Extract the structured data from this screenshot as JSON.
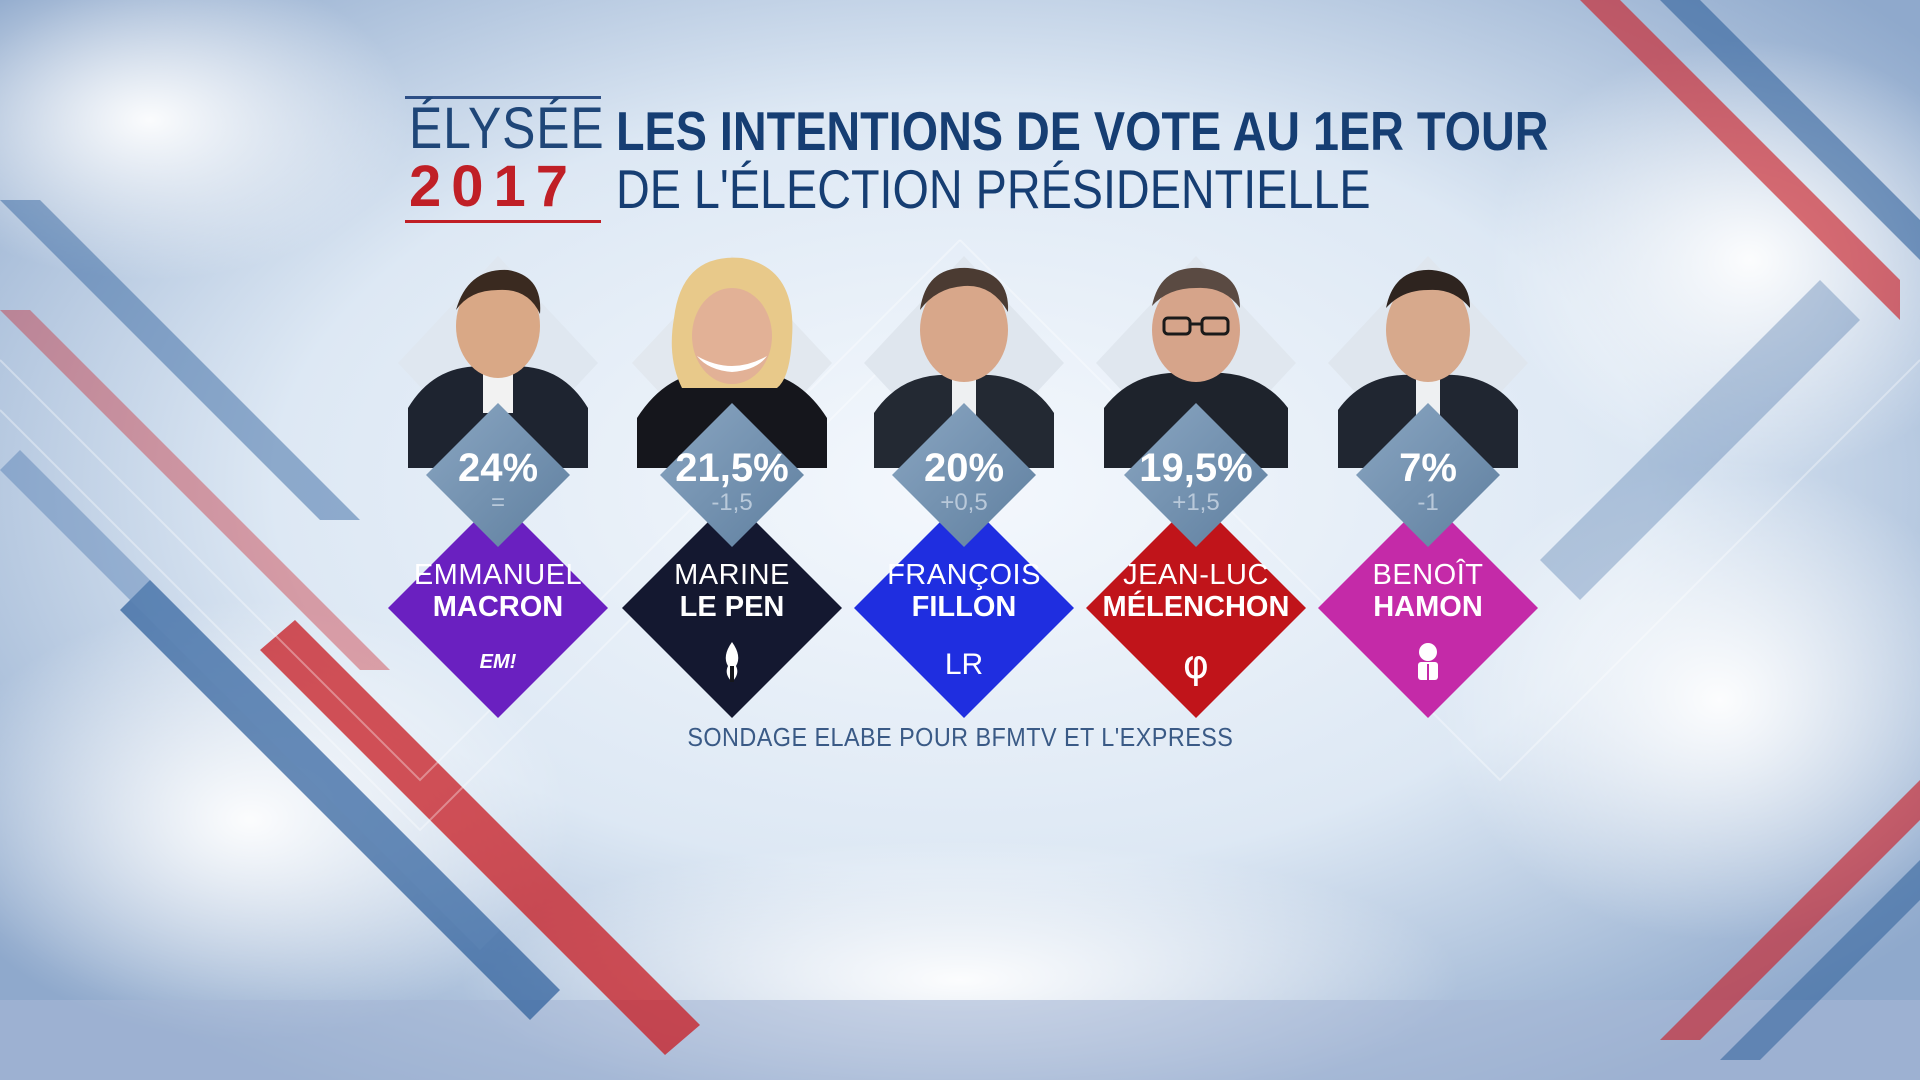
{
  "brand": {
    "line1": "ÉLYSÉE",
    "line2": "2017"
  },
  "title": {
    "line1": "LES INTENTIONS DE VOTE AU 1ER TOUR",
    "line2": "DE L'ÉLECTION PRÉSIDENTIELLE"
  },
  "colors": {
    "brand_red": "#c01f26",
    "brand_blue": "#1f4678",
    "percent_diamond": "#6f8fae"
  },
  "candidates": [
    {
      "pct": "24%",
      "delta": "=",
      "first": "EMMANUEL",
      "last": "MACRON",
      "party_mark": "EM!",
      "color": "#6a20c0",
      "party_icon": "en-marche-logo"
    },
    {
      "pct": "21,5%",
      "delta": "-1,5",
      "first": "MARINE",
      "last": "LE PEN",
      "party_mark": "",
      "color": "#141830",
      "party_icon": "flame-icon"
    },
    {
      "pct": "20%",
      "delta": "+0,5",
      "first": "FRANÇOIS",
      "last": "FILLON",
      "party_mark": "LR",
      "color": "#1f2ee0",
      "party_icon": "lr-logo"
    },
    {
      "pct": "19,5%",
      "delta": "+1,5",
      "first": "JEAN-LUC",
      "last": "MÉLENCHON",
      "party_mark": "φ",
      "color": "#c0141a",
      "party_icon": "phi-icon"
    },
    {
      "pct": "7%",
      "delta": "-1",
      "first": "BENOÎT",
      "last": "HAMON",
      "party_mark": "",
      "color": "#c42aa8",
      "party_icon": "ps-rose-icon"
    }
  ],
  "source": "SONDAGE ELABE POUR BFMTV ET L'EXPRESS"
}
